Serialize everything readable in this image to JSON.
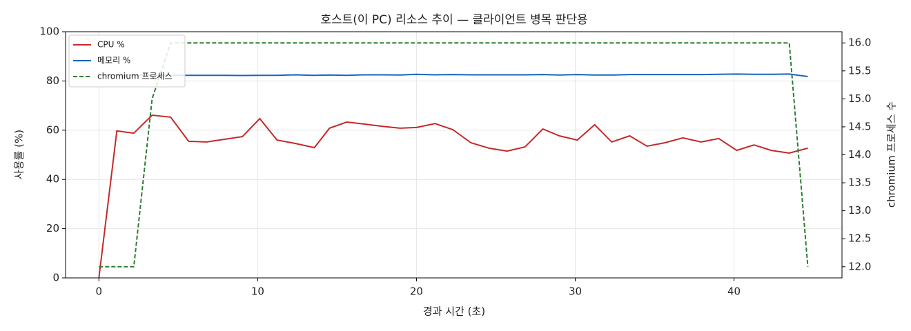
{
  "chart_data": {
    "type": "line",
    "title": "호스트(이 PC) 리소스 추이 — 클라이언트 병목 판단용",
    "x_label": "경과 시간 (초)",
    "y_label": "사용률 (%)",
    "y2_label": "chromium 프로세스 수",
    "x": [
      0,
      1.13,
      2.2,
      3.35,
      4.52,
      5.65,
      6.78,
      7.91,
      9.04,
      10.13,
      11.22,
      12.39,
      13.57,
      14.52,
      15.61,
      16.7,
      17.83,
      18.96,
      20.0,
      21.17,
      22.3,
      23.43,
      24.57,
      25.7,
      26.83,
      27.96,
      29.0,
      30.13,
      31.22,
      32.3,
      33.43,
      34.52,
      35.65,
      36.78,
      37.91,
      39.04,
      40.17,
      41.26,
      42.35,
      43.48,
      44.65
    ],
    "series": [
      {
        "name": "CPU %",
        "color": "#c62828",
        "values": [
          0,
          59.7,
          58.8,
          66.1,
          65.3,
          55.5,
          55.2,
          56.3,
          57.4,
          64.7,
          56.0,
          54.6,
          52.9,
          60.8,
          63.3,
          62.5,
          61.6,
          60.8,
          61.1,
          62.7,
          60.2,
          54.9,
          52.7,
          51.5,
          53.2,
          60.5,
          57.7,
          56.0,
          62.2,
          55.2,
          57.7,
          53.5,
          54.9,
          56.9,
          55.2,
          56.6,
          51.8,
          54.0,
          51.8,
          50.7,
          52.7
        ]
      },
      {
        "name": "메모리 %",
        "color": "#1565c0",
        "values": [
          82.3,
          82.3,
          82.3,
          82.3,
          82.3,
          82.3,
          82.3,
          82.3,
          82.2,
          82.3,
          82.3,
          82.5,
          82.3,
          82.4,
          82.3,
          82.5,
          82.5,
          82.4,
          82.7,
          82.5,
          82.6,
          82.5,
          82.5,
          82.5,
          82.5,
          82.6,
          82.4,
          82.6,
          82.4,
          82.4,
          82.6,
          82.6,
          82.6,
          82.6,
          82.6,
          82.7,
          82.8,
          82.7,
          82.7,
          82.8,
          81.8
        ]
      },
      {
        "name": "chromium 프로세스",
        "color": "#2e7d32",
        "dashed": true,
        "axis": "y2",
        "values": [
          12,
          12,
          12,
          15,
          16,
          16,
          16,
          16,
          16,
          16,
          16,
          16,
          16,
          16,
          16,
          16,
          16,
          16,
          16,
          16,
          16,
          16,
          16,
          16,
          16,
          16,
          16,
          16,
          16,
          16,
          16,
          16,
          16,
          16,
          16,
          16,
          16,
          16,
          16,
          16,
          12
        ]
      }
    ],
    "xlim": [
      -2.1,
      46.8
    ],
    "xticks": [
      0,
      10,
      20,
      30,
      40
    ],
    "ylim": [
      0,
      100
    ],
    "yticks": [
      0,
      20,
      40,
      60,
      80,
      100
    ],
    "y2lim": [
      11.8,
      16.2
    ],
    "y2ticks": [
      {
        "value": 12,
        "label": "12.0"
      },
      {
        "value": 12.5,
        "label": "12.5"
      },
      {
        "value": 13,
        "label": "13.0"
      },
      {
        "value": 13.5,
        "label": "13.5"
      },
      {
        "value": 14,
        "label": "14.0"
      },
      {
        "value": 14.5,
        "label": "14.5"
      },
      {
        "value": 15,
        "label": "15.0"
      },
      {
        "value": 15.5,
        "label": "15.5"
      },
      {
        "value": 16,
        "label": "16.0"
      }
    ],
    "grid": true,
    "legend": "upper left"
  }
}
